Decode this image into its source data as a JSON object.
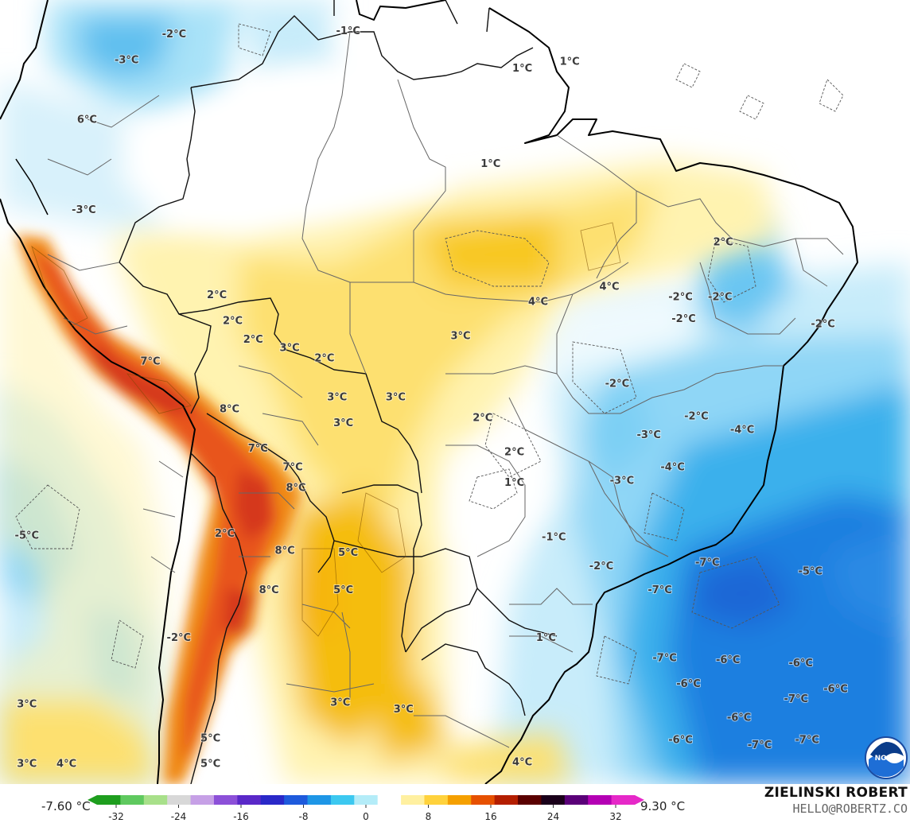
{
  "map": {
    "labels": [
      {
        "text": "-2°C",
        "lon": -74.5,
        "lat": 9.8
      },
      {
        "text": "-1°C",
        "lon": -63.5,
        "lat": 10.0
      },
      {
        "text": "-3°C",
        "lon": -77.5,
        "lat": 8.3
      },
      {
        "text": "1°C",
        "lon": -52.5,
        "lat": 7.8
      },
      {
        "text": "1°C",
        "lon": -49.5,
        "lat": 8.2
      },
      {
        "text": "6°C",
        "lon": -80.0,
        "lat": 4.8
      },
      {
        "text": "1°C",
        "lon": -54.5,
        "lat": 2.2
      },
      {
        "text": "-3°C",
        "lon": -80.2,
        "lat": -0.5
      },
      {
        "text": "2°C",
        "lon": -39.8,
        "lat": -2.4
      },
      {
        "text": "2°C",
        "lon": -71.8,
        "lat": -5.5
      },
      {
        "text": "4°C",
        "lon": -51.5,
        "lat": -5.9
      },
      {
        "text": "4°C",
        "lon": -47.0,
        "lat": -5.0
      },
      {
        "text": "-2°C",
        "lon": -40.0,
        "lat": -5.6
      },
      {
        "text": "-2°C",
        "lon": -42.5,
        "lat": -5.6
      },
      {
        "text": "-2°C",
        "lon": -42.3,
        "lat": -6.9
      },
      {
        "text": "-2°C",
        "lon": -33.5,
        "lat": -7.2
      },
      {
        "text": "2°C",
        "lon": -70.8,
        "lat": -7.0
      },
      {
        "text": "2°C",
        "lon": -69.5,
        "lat": -8.1
      },
      {
        "text": "3°C",
        "lon": -67.2,
        "lat": -8.6
      },
      {
        "text": "3°C",
        "lon": -56.4,
        "lat": -7.9
      },
      {
        "text": "7°C",
        "lon": -76.0,
        "lat": -9.4
      },
      {
        "text": "2°C",
        "lon": -65.0,
        "lat": -9.2
      },
      {
        "text": "3°C",
        "lon": -64.2,
        "lat": -11.5
      },
      {
        "text": "3°C",
        "lon": -60.5,
        "lat": -11.5
      },
      {
        "text": "-2°C",
        "lon": -46.5,
        "lat": -10.7
      },
      {
        "text": "8°C",
        "lon": -71.0,
        "lat": -12.2
      },
      {
        "text": "3°C",
        "lon": -63.8,
        "lat": -13.0
      },
      {
        "text": "2°C",
        "lon": -55.0,
        "lat": -12.7
      },
      {
        "text": "-2°C",
        "lon": -41.5,
        "lat": -12.6
      },
      {
        "text": "-4°C",
        "lon": -38.6,
        "lat": -13.4
      },
      {
        "text": "-3°C",
        "lon": -44.5,
        "lat": -13.7
      },
      {
        "text": "7°C",
        "lon": -69.2,
        "lat": -14.5
      },
      {
        "text": "2°C",
        "lon": -53.0,
        "lat": -14.7
      },
      {
        "text": "7°C",
        "lon": -67.0,
        "lat": -15.6
      },
      {
        "text": "-4°C",
        "lon": -43.0,
        "lat": -15.6
      },
      {
        "text": "-3°C",
        "lon": -46.2,
        "lat": -16.4
      },
      {
        "text": "8°C",
        "lon": -66.8,
        "lat": -16.8
      },
      {
        "text": "1°C",
        "lon": -53.0,
        "lat": -16.5
      },
      {
        "text": "-5°C",
        "lon": -83.8,
        "lat": -19.6
      },
      {
        "text": "2°C",
        "lon": -71.3,
        "lat": -19.5
      },
      {
        "text": "-1°C",
        "lon": -50.5,
        "lat": -19.7
      },
      {
        "text": "8°C",
        "lon": -67.5,
        "lat": -20.5
      },
      {
        "text": "5°C",
        "lon": -63.5,
        "lat": -20.6
      },
      {
        "text": "-2°C",
        "lon": -47.5,
        "lat": -21.4
      },
      {
        "text": "-7°C",
        "lon": -40.8,
        "lat": -21.2
      },
      {
        "text": "-5°C",
        "lon": -34.3,
        "lat": -21.7
      },
      {
        "text": "8°C",
        "lon": -68.5,
        "lat": -22.8
      },
      {
        "text": "5°C",
        "lon": -63.8,
        "lat": -22.8
      },
      {
        "text": "-7°C",
        "lon": -43.8,
        "lat": -22.8
      },
      {
        "text": "-2°C",
        "lon": -74.2,
        "lat": -25.6
      },
      {
        "text": "1°C",
        "lon": -51.0,
        "lat": -25.6
      },
      {
        "text": "-7°C",
        "lon": -43.5,
        "lat": -26.8
      },
      {
        "text": "-6°C",
        "lon": -39.5,
        "lat": -26.9
      },
      {
        "text": "-6°C",
        "lon": -34.9,
        "lat": -27.1
      },
      {
        "text": "-6°C",
        "lon": -42.0,
        "lat": -28.3
      },
      {
        "text": "-6°C",
        "lon": -32.7,
        "lat": -28.6
      },
      {
        "text": "3°C",
        "lon": -83.8,
        "lat": -29.5
      },
      {
        "text": "3°C",
        "lon": -64.0,
        "lat": -29.4
      },
      {
        "text": "3°C",
        "lon": -60.0,
        "lat": -29.8
      },
      {
        "text": "-7°C",
        "lon": -35.2,
        "lat": -29.2
      },
      {
        "text": "-6°C",
        "lon": -38.8,
        "lat": -30.3
      },
      {
        "text": "5°C",
        "lon": -72.2,
        "lat": -31.5
      },
      {
        "text": "-6°C",
        "lon": -42.5,
        "lat": -31.6
      },
      {
        "text": "-7°C",
        "lon": -37.5,
        "lat": -31.9
      },
      {
        "text": "-7°C",
        "lon": -34.5,
        "lat": -31.6
      },
      {
        "text": "3°C",
        "lon": -83.8,
        "lat": -33.0
      },
      {
        "text": "4°C",
        "lon": -81.3,
        "lat": -33.0
      },
      {
        "text": "5°C",
        "lon": -72.2,
        "lat": -33.0
      },
      {
        "text": "4°C",
        "lon": -52.5,
        "lat": -32.9
      }
    ]
  },
  "legend": {
    "min_label": "-7.60 °C",
    "max_label": "9.30 °C",
    "ticks": [
      "-32",
      "-24",
      "-16",
      "-8",
      "0",
      "8",
      "16",
      "24",
      "32"
    ],
    "colors": [
      "#1e9e1e",
      "#5fc95f",
      "#a8e08a",
      "#d8d8d8",
      "#c6a0e6",
      "#8c50d8",
      "#5a28c8",
      "#2a28c8",
      "#1e5adc",
      "#1e96e6",
      "#3cc8f0",
      "#b4ecf8",
      "#ffffff",
      "#fff0a0",
      "#ffd23c",
      "#f5a000",
      "#e65000",
      "#b41e00",
      "#5a0000",
      "#1a001a",
      "#5a0078",
      "#b400b4",
      "#e628c8"
    ]
  },
  "branding": {
    "author": "ZIELINSKI ROBERT",
    "email": "HELLO@ROBERTZ.CO",
    "logo_text": "NOAA"
  }
}
